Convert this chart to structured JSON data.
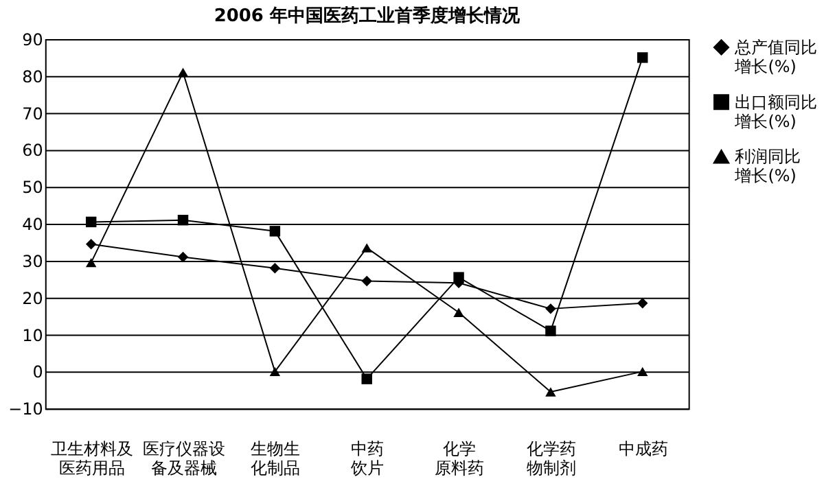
{
  "chart_data": {
    "type": "line",
    "title": "2006 年中国医药工业首季度增长情况",
    "categories": [
      "卫生材料及医药用品",
      "医疗仪器设备及器械",
      "生物生化制品",
      "中药饮片",
      "化学原料药",
      "化学药物制剂",
      "中成药"
    ],
    "series": [
      {
        "name": "总产值同比增长(%)",
        "color": "#000000",
        "marker": "diamond",
        "values": [
          34.5,
          31,
          28,
          24.5,
          24,
          17,
          18.5
        ]
      },
      {
        "name": "出口额同比增长(%)",
        "color": "#000000",
        "marker": "square",
        "values": [
          40.5,
          41,
          38,
          -2,
          25.5,
          11,
          85
        ]
      },
      {
        "name": "利润同比增长(%)",
        "color": "#000000",
        "marker": "triangle",
        "values": [
          29.5,
          81,
          0,
          33.5,
          16,
          -5.5,
          0
        ]
      }
    ],
    "ylim": [
      -10,
      90
    ],
    "yticks": [
      -10,
      0,
      10,
      20,
      30,
      40,
      50,
      60,
      70,
      80,
      90
    ],
    "grid": "y",
    "legend": "right",
    "line_style": "solid"
  }
}
